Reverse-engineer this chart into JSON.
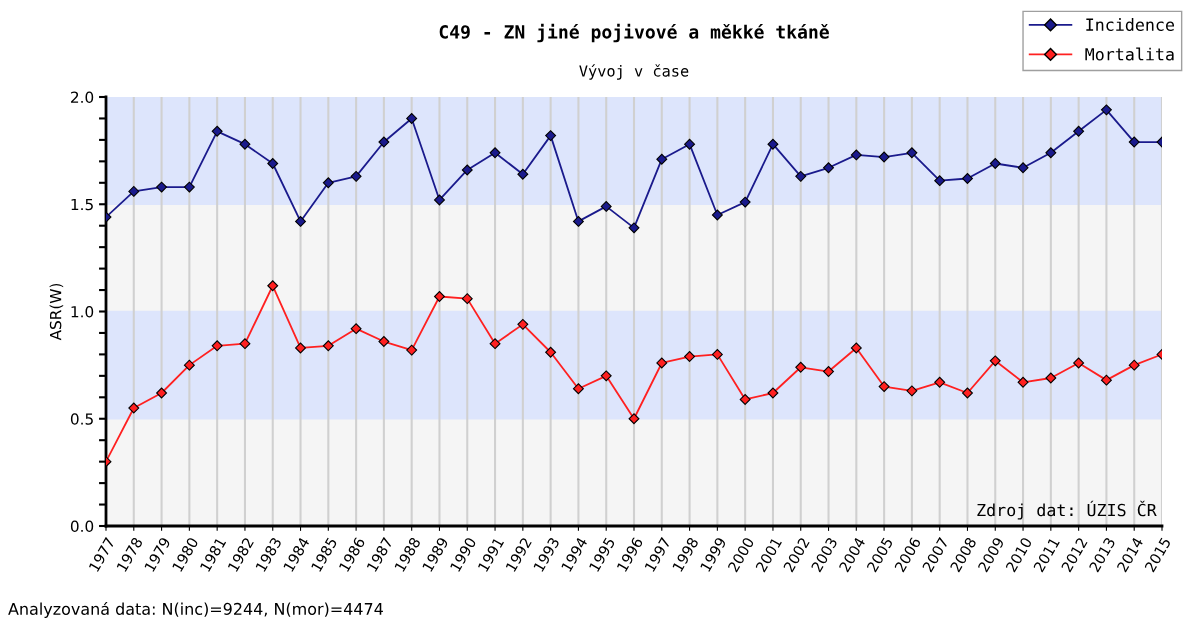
{
  "chart_data": {
    "type": "line",
    "title": "C49 - ZN jiné pojivové a měkké tkáně",
    "subtitle": "Vývoj v čase",
    "ylabel": "ASR(W)",
    "categories": [
      "1977",
      "1978",
      "1979",
      "1980",
      "1981",
      "1982",
      "1983",
      "1984",
      "1985",
      "1986",
      "1987",
      "1988",
      "1989",
      "1990",
      "1991",
      "1992",
      "1993",
      "1994",
      "1995",
      "1996",
      "1997",
      "1998",
      "1999",
      "2000",
      "2001",
      "2002",
      "2003",
      "2004",
      "2005",
      "2006",
      "2007",
      "2008",
      "2009",
      "2010",
      "2011",
      "2012",
      "2013",
      "2014",
      "2015"
    ],
    "series": [
      {
        "name": "Incidence",
        "color": "#1a1a8c",
        "values": [
          1.44,
          1.56,
          1.58,
          1.58,
          1.84,
          1.78,
          1.69,
          1.42,
          1.6,
          1.63,
          1.79,
          1.9,
          1.52,
          1.66,
          1.74,
          1.64,
          1.82,
          1.42,
          1.49,
          1.39,
          1.71,
          1.78,
          1.45,
          1.51,
          1.78,
          1.63,
          1.67,
          1.73,
          1.72,
          1.74,
          1.61,
          1.62,
          1.69,
          1.67,
          1.74,
          1.84,
          1.94,
          1.79,
          1.79
        ]
      },
      {
        "name": "Mortalita",
        "color": "#ff2020",
        "values": [
          0.3,
          0.55,
          0.62,
          0.75,
          0.84,
          0.85,
          1.12,
          0.83,
          0.84,
          0.92,
          0.86,
          0.82,
          1.07,
          1.06,
          0.85,
          0.94,
          0.81,
          0.64,
          0.7,
          0.5,
          0.76,
          0.79,
          0.8,
          0.59,
          0.62,
          0.74,
          0.72,
          0.83,
          0.65,
          0.63,
          0.67,
          0.62,
          0.77,
          0.67,
          0.69,
          0.76,
          0.68,
          0.75,
          0.8
        ]
      }
    ],
    "ylim": [
      0,
      2.0
    ],
    "yticks": [
      {
        "value": 0,
        "label": "0.0"
      },
      {
        "value": 0.1,
        "label": null
      },
      {
        "value": 0.2,
        "label": null
      },
      {
        "value": 0.3,
        "label": null
      },
      {
        "value": 0.4,
        "label": null
      },
      {
        "value": 0.5,
        "label": "0.5"
      },
      {
        "value": 0.6,
        "label": null
      },
      {
        "value": 0.7,
        "label": null
      },
      {
        "value": 0.8,
        "label": null
      },
      {
        "value": 0.9,
        "label": null
      },
      {
        "value": 1.0,
        "label": "1.0"
      },
      {
        "value": 1.1,
        "label": null
      },
      {
        "value": 1.2,
        "label": null
      },
      {
        "value": 1.3,
        "label": null
      },
      {
        "value": 1.4,
        "label": null
      },
      {
        "value": 1.5,
        "label": "1.5"
      },
      {
        "value": 1.6,
        "label": null
      },
      {
        "value": 1.7,
        "label": null
      },
      {
        "value": 1.8,
        "label": null
      },
      {
        "value": 1.9,
        "label": null
      },
      {
        "value": 2.0,
        "label": "2.0"
      }
    ],
    "bands": [
      {
        "axis": "y",
        "from": 0.5,
        "to": 1.0,
        "color": "#dde5fc"
      },
      {
        "axis": "y",
        "from": 1.5,
        "to": 2.0,
        "color": "#dde5fc"
      }
    ],
    "annotations": [
      "Zdroj dat: ÚZIS ČR",
      "Analyzovaná data: N(inc)=9244, N(mor)=4474"
    ],
    "grid": "x",
    "legend": "top right",
    "marker": "diamond",
    "line_style": "solid"
  }
}
